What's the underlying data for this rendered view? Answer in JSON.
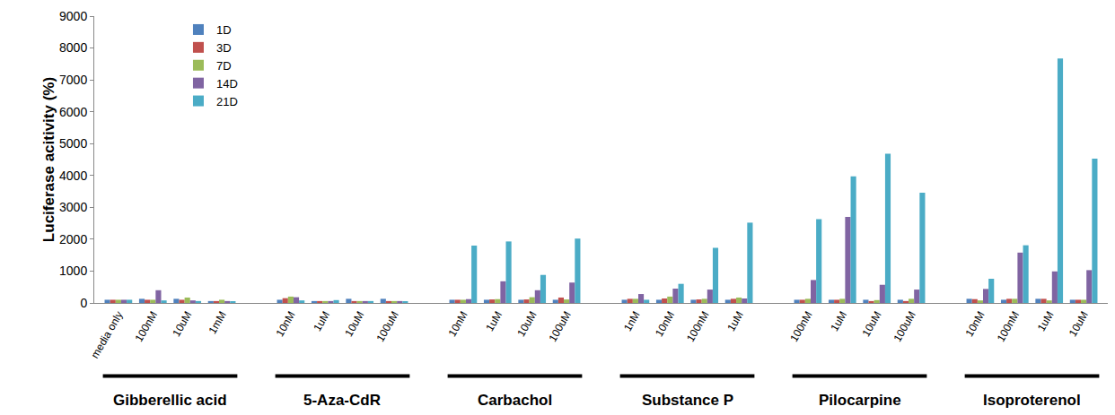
{
  "chart_data": {
    "type": "bar",
    "y_label": "Luciferase acitivity (%)",
    "categories": [
      "media only",
      "100nM",
      "10uM",
      "1mM",
      null,
      "10nM",
      "1uM",
      "10uM",
      "100uM",
      null,
      "10nM",
      "1uM",
      "10uM",
      "100uM",
      null,
      "1nM",
      "10nM",
      "100nM",
      "1uM",
      null,
      "100nM",
      "1uM",
      "10uM",
      "100uM",
      null,
      "10nM",
      "100nM",
      "1uM",
      "10uM"
    ],
    "groups": [
      "Gibberellic acid",
      "5-Aza-CdR",
      "Carbachol",
      "Substance P",
      "Pilocarpine",
      "Isoproterenol"
    ],
    "series": [
      {
        "name": "1D",
        "color": "#4F81BD",
        "values": [
          100,
          130,
          130,
          60,
          null,
          100,
          60,
          130,
          130,
          null,
          100,
          100,
          100,
          100,
          null,
          100,
          100,
          100,
          100,
          null,
          100,
          100,
          100,
          100,
          null,
          130,
          100,
          130,
          100
        ]
      },
      {
        "name": "3D",
        "color": "#C0504D",
        "values": [
          100,
          100,
          100,
          60,
          null,
          150,
          60,
          60,
          60,
          null,
          100,
          110,
          110,
          170,
          null,
          130,
          140,
          110,
          130,
          null,
          100,
          100,
          60,
          60,
          null,
          120,
          130,
          130,
          100
        ]
      },
      {
        "name": "7D",
        "color": "#9BBB59",
        "values": [
          100,
          100,
          170,
          100,
          null,
          200,
          60,
          60,
          60,
          null,
          100,
          120,
          180,
          110,
          null,
          130,
          200,
          130,
          170,
          null,
          130,
          130,
          90,
          130,
          null,
          80,
          130,
          80,
          100
        ]
      },
      {
        "name": "14D",
        "color": "#8064A2",
        "values": [
          100,
          400,
          80,
          60,
          null,
          180,
          60,
          60,
          60,
          null,
          120,
          680,
          400,
          640,
          null,
          280,
          450,
          420,
          140,
          null,
          720,
          2700,
          570,
          420,
          null,
          440,
          1580,
          990,
          1030
        ]
      },
      {
        "name": "21D",
        "color": "#4BACC6",
        "values": [
          100,
          80,
          60,
          50,
          null,
          80,
          90,
          60,
          50,
          null,
          1800,
          1930,
          880,
          2020,
          null,
          100,
          600,
          1730,
          2520,
          null,
          2630,
          3970,
          4680,
          3460,
          null,
          760,
          1810,
          7670,
          4530
        ]
      }
    ],
    "ylim": [
      0,
      9000
    ],
    "yticks": [
      0,
      1000,
      2000,
      3000,
      4000,
      5000,
      6000,
      7000,
      8000,
      9000
    ],
    "grid": false,
    "legend": "top left"
  }
}
